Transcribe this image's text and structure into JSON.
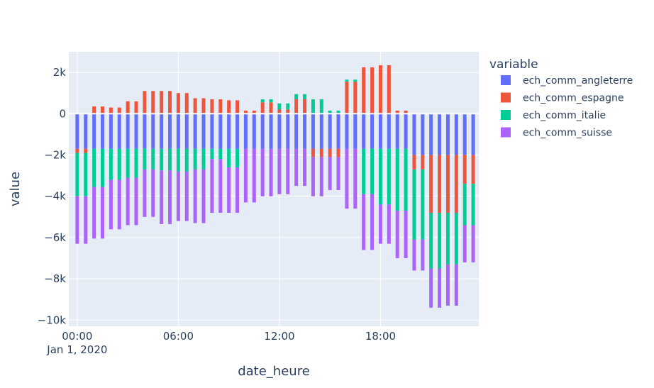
{
  "chart_data": {
    "type": "bar",
    "barmode": "relative",
    "xlabel": "date_heure",
    "ylabel": "value",
    "legend_title": "variable",
    "legend_position": "right",
    "grid": true,
    "x_start": "2020-01-01T00:00",
    "x_step_minutes": 30,
    "x_range": [
      "2019-12-31T23:30",
      "2020-01-01T23:50"
    ],
    "ylim": [
      -10300,
      3000
    ],
    "x_ticks": [
      {
        "time": "2020-01-01T00:00",
        "label": "00:00",
        "sublabel": "Jan 1, 2020"
      },
      {
        "time": "2020-01-01T06:00",
        "label": "06:00",
        "sublabel": ""
      },
      {
        "time": "2020-01-01T12:00",
        "label": "12:00",
        "sublabel": ""
      },
      {
        "time": "2020-01-01T18:00",
        "label": "18:00",
        "sublabel": ""
      }
    ],
    "y_ticks": [
      {
        "value": 2000,
        "label": "2k"
      },
      {
        "value": 0,
        "label": "0"
      },
      {
        "value": -2000,
        "label": "−2k"
      },
      {
        "value": -4000,
        "label": "−4k"
      },
      {
        "value": -6000,
        "label": "−6k"
      },
      {
        "value": -8000,
        "label": "−8k"
      },
      {
        "value": -10000,
        "label": "−10k"
      }
    ],
    "series": [
      {
        "name": "ech_comm_angleterre",
        "color": "#636efa",
        "values": [
          -1700,
          -1700,
          -1700,
          -1700,
          -1700,
          -1700,
          -1700,
          -1700,
          -1700,
          -1700,
          -1700,
          -1700,
          -1700,
          -1700,
          -1700,
          -1700,
          -1700,
          -1700,
          -1700,
          -1700,
          -1700,
          -1700,
          -1700,
          -1700,
          -1700,
          -1700,
          -1700,
          -1700,
          -1700,
          -1700,
          -1700,
          -1700,
          -1700,
          -1700,
          -1700,
          -1700,
          -1700,
          -1700,
          -1700,
          -1700,
          -2000,
          -2000,
          -2000,
          -2000,
          -2000,
          -2000,
          -2000,
          -2000
        ]
      },
      {
        "name": "ech_comm_espagne",
        "color": "#ef553b",
        "values": [
          -200,
          -200,
          350,
          350,
          300,
          300,
          600,
          600,
          1100,
          1100,
          1100,
          1100,
          1000,
          1000,
          750,
          750,
          700,
          700,
          650,
          650,
          150,
          150,
          550,
          550,
          200,
          200,
          700,
          700,
          -400,
          -400,
          -400,
          -400,
          1550,
          1550,
          2250,
          2250,
          2350,
          2350,
          150,
          150,
          -700,
          -700,
          -2800,
          -2800,
          -2800,
          -2800,
          -1400,
          -1400
        ]
      },
      {
        "name": "ech_comm_italie",
        "color": "#00cc96",
        "values": [
          -2100,
          -2100,
          -1850,
          -1850,
          -1500,
          -1500,
          -1400,
          -1400,
          -1000,
          -1000,
          -1050,
          -1050,
          -1100,
          -1100,
          -1000,
          -1000,
          -500,
          -500,
          -900,
          -900,
          0,
          0,
          150,
          150,
          300,
          300,
          250,
          250,
          700,
          700,
          150,
          150,
          100,
          100,
          -2200,
          -2200,
          -2700,
          -2700,
          -3000,
          -3000,
          -3400,
          -3400,
          -2700,
          -2700,
          -2500,
          -2500,
          -2000,
          -2000
        ]
      },
      {
        "name": "ech_comm_suisse",
        "color": "#ab63fa",
        "values": [
          -2300,
          -2300,
          -2500,
          -2500,
          -2400,
          -2400,
          -2300,
          -2300,
          -2300,
          -2300,
          -2600,
          -2600,
          -2400,
          -2400,
          -2600,
          -2600,
          -2600,
          -2600,
          -2200,
          -2200,
          -2600,
          -2600,
          -2300,
          -2300,
          -2200,
          -2200,
          -1800,
          -1800,
          -1900,
          -1900,
          -1600,
          -1600,
          -2900,
          -2900,
          -2700,
          -2700,
          -1900,
          -1900,
          -2300,
          -2300,
          -1500,
          -1500,
          -1900,
          -1900,
          -2000,
          -2000,
          -1800,
          -1800
        ]
      }
    ]
  }
}
